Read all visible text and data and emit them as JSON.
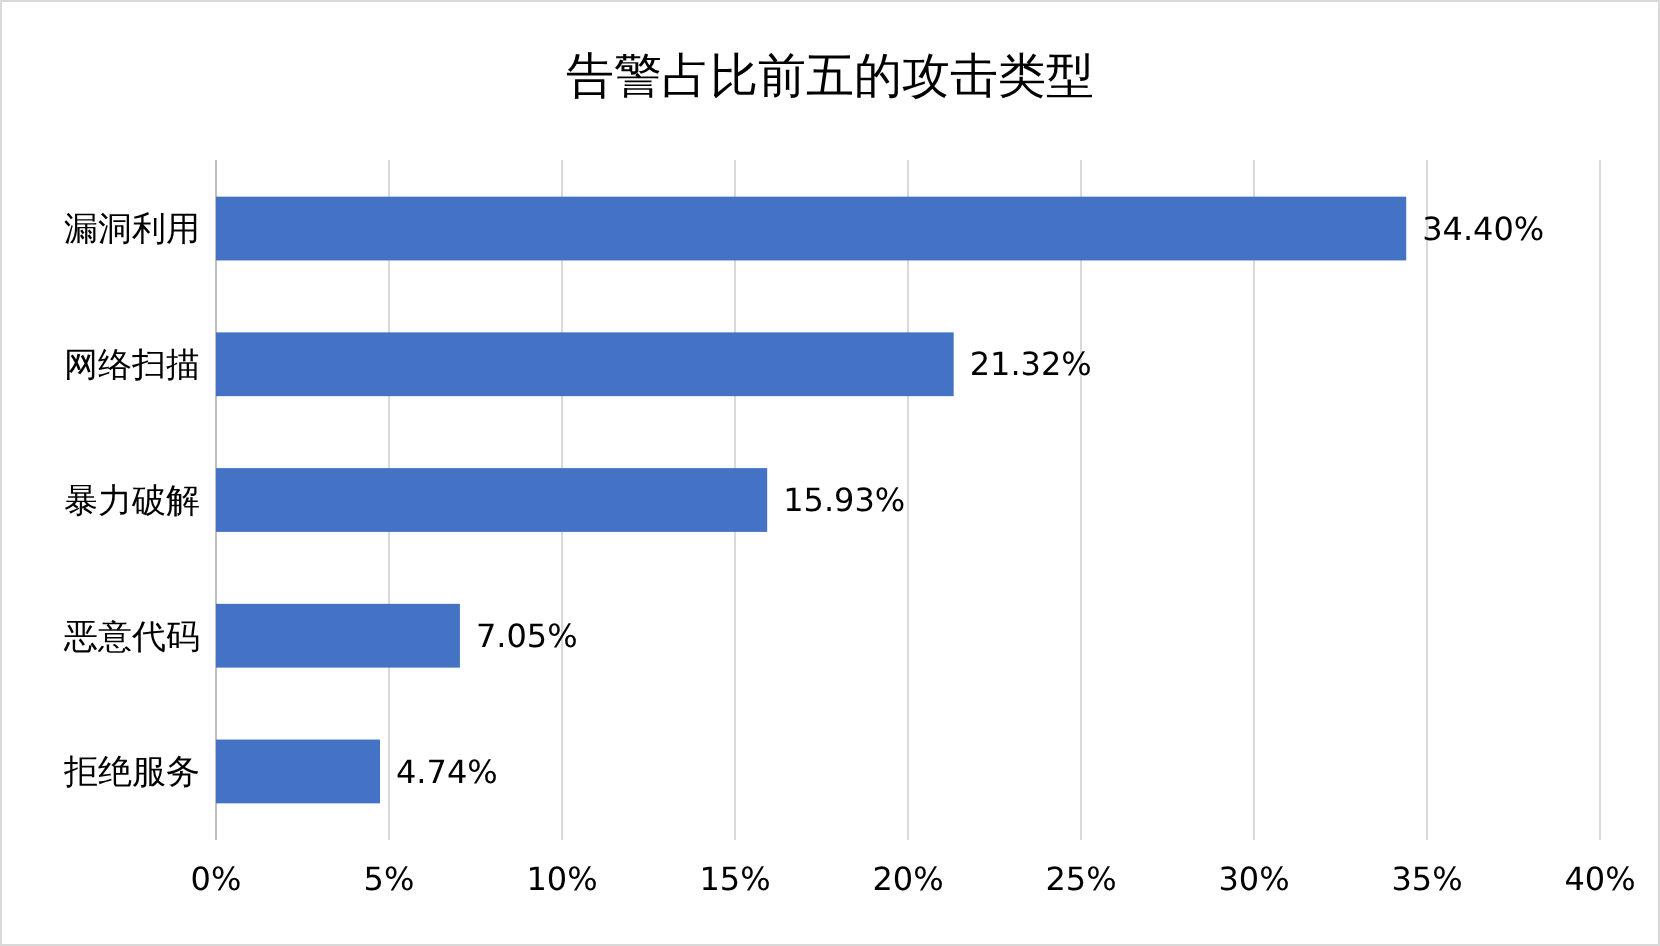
{
  "chart_data": {
    "type": "bar",
    "orientation": "horizontal",
    "title": "告警占比前五的攻击类型",
    "categories": [
      "漏洞利用",
      "网络扫描",
      "暴力破解",
      "恶意代码",
      "拒绝服务"
    ],
    "values": [
      34.4,
      21.32,
      15.93,
      7.05,
      4.74
    ],
    "value_labels": [
      "34.40%",
      "21.32%",
      "15.93%",
      "7.05%",
      "4.74%"
    ],
    "color": "#4472c4",
    "xlim": [
      0,
      40
    ],
    "xticks": [
      {
        "value": 0,
        "label": "0%"
      },
      {
        "value": 5,
        "label": "5%"
      },
      {
        "value": 10,
        "label": "10%"
      },
      {
        "value": 15,
        "label": "15%"
      },
      {
        "value": 20,
        "label": "20%"
      },
      {
        "value": 25,
        "label": "25%"
      },
      {
        "value": 30,
        "label": "30%"
      },
      {
        "value": 35,
        "label": "35%"
      },
      {
        "value": 40,
        "label": "40%"
      }
    ],
    "grid": "x"
  }
}
